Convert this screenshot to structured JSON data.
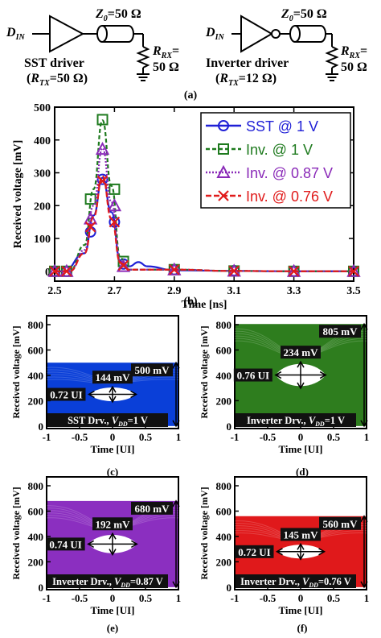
{
  "figure": {
    "captions": [
      "(a)",
      "(b)",
      "(c)",
      "(d)",
      "(e)",
      "(f)"
    ]
  },
  "schematic": {
    "left": {
      "input": "D",
      "input_sub": "IN",
      "line_label": "Z",
      "line_sub": "0",
      "line_value": "=50 Ω",
      "load_label": "R",
      "load_sub": "RX",
      "load_eq": "=",
      "load_value": "50 Ω",
      "driver_name": "SST driver",
      "driver_param_open": "(",
      "driver_param": "R",
      "driver_param_sub": "TX",
      "driver_param_value": "=50 Ω)"
    },
    "right": {
      "input": "D",
      "input_sub": "IN",
      "line_label": "Z",
      "line_sub": "0",
      "line_value": "=50 Ω",
      "load_label": "R",
      "load_sub": "RX",
      "load_eq": "=",
      "load_value": "50 Ω",
      "driver_name": "Inverter driver",
      "driver_param_open": "(",
      "driver_param": "R",
      "driver_param_sub": "TX",
      "driver_param_value": "=12 Ω)"
    }
  },
  "colors": {
    "sst": "#1f1fd6",
    "inv1": "#1e7a1e",
    "inv087": "#8a2ab8",
    "inv076": "#e01b1b",
    "eye_c": "#0a3fd8",
    "eye_d": "#2e7d1e",
    "eye_e": "#8b2fc0",
    "eye_f": "#e0191b"
  },
  "chart_data": [
    {
      "type": "line",
      "panel": "(b)",
      "xlabel": "Time [ns]",
      "ylabel": "Received voltage [mV]",
      "xlim": [
        2.5,
        3.5
      ],
      "ylim": [
        -30,
        500
      ],
      "xticks": [
        "2.5",
        "2.7",
        "2.9",
        "3.1",
        "3.3",
        "3.5"
      ],
      "yticks": [
        "0",
        "100",
        "200",
        "300",
        "400",
        "500"
      ],
      "grid": false,
      "legend_position": "top-right",
      "series": [
        {
          "name": "SST @ 1 V",
          "marker": "circle",
          "dash": "solid",
          "x": [
            2.5,
            2.53,
            2.6,
            2.63,
            2.66,
            2.69,
            2.72,
            2.75,
            2.78,
            2.81,
            2.9,
            3.1,
            3.3,
            3.5
          ],
          "y": [
            0,
            0,
            55,
            170,
            285,
            180,
            30,
            15,
            28,
            15,
            3,
            1,
            0,
            0
          ],
          "marker_x": [
            2.5,
            2.54,
            2.62,
            2.66,
            2.7,
            2.73,
            2.9,
            3.1,
            3.3,
            3.5
          ],
          "marker_y": [
            0,
            0,
            120,
            280,
            150,
            22,
            5,
            2,
            0,
            0
          ]
        },
        {
          "name": "Inv. @ 1 V",
          "marker": "square",
          "dash": "5,3",
          "x": [
            2.5,
            2.55,
            2.6,
            2.63,
            2.66,
            2.69,
            2.72,
            2.75,
            2.8,
            2.9,
            3.1,
            3.3,
            3.5
          ],
          "y": [
            0,
            0,
            80,
            250,
            460,
            260,
            40,
            5,
            5,
            5,
            1,
            0,
            0
          ],
          "marker_x": [
            2.5,
            2.54,
            2.62,
            2.66,
            2.7,
            2.73,
            2.9,
            3.1,
            3.3,
            3.5
          ],
          "marker_y": [
            0,
            0,
            220,
            462,
            250,
            30,
            5,
            1,
            0,
            0
          ]
        },
        {
          "name": "Inv. @ 0.87 V",
          "marker": "triangle",
          "dash": "2,2",
          "x": [
            2.5,
            2.55,
            2.6,
            2.63,
            2.66,
            2.69,
            2.72,
            2.75,
            2.8,
            2.9,
            3.1,
            3.3,
            3.5
          ],
          "y": [
            0,
            0,
            65,
            200,
            375,
            210,
            30,
            5,
            5,
            5,
            1,
            0,
            0
          ],
          "marker_x": [
            2.5,
            2.54,
            2.62,
            2.66,
            2.7,
            2.73,
            2.9,
            3.1,
            3.3,
            3.5
          ],
          "marker_y": [
            0,
            0,
            160,
            372,
            200,
            15,
            5,
            1,
            0,
            0
          ]
        },
        {
          "name": "Inv. @ 0.76 V",
          "marker": "x",
          "dash": "7,3",
          "x": [
            2.5,
            2.55,
            2.6,
            2.63,
            2.66,
            2.69,
            2.72,
            2.75,
            2.8,
            2.9,
            3.1,
            3.3,
            3.5
          ],
          "y": [
            0,
            0,
            55,
            165,
            290,
            160,
            25,
            5,
            5,
            5,
            1,
            0,
            0
          ],
          "marker_x": [
            2.5,
            2.54,
            2.62,
            2.66,
            2.7,
            2.73,
            2.9,
            3.1,
            3.3,
            3.5
          ],
          "marker_y": [
            0,
            0,
            135,
            275,
            150,
            18,
            5,
            1,
            0,
            0
          ]
        }
      ]
    },
    {
      "type": "area",
      "panel": "(c)",
      "color_key": "eye_c",
      "xlabel": "Time [UI]",
      "ylabel": "Received voltage [mV]",
      "xlim": [
        -1,
        1
      ],
      "ylim": [
        -20,
        870
      ],
      "xticks": [
        "-1",
        "-0.5",
        "0",
        "0.5",
        "1"
      ],
      "yticks": [
        "0",
        "200",
        "400",
        "600",
        "800"
      ],
      "swing_label": "500 mV",
      "swing": 500,
      "eye_height_label": "144 mV",
      "eye_height": 144,
      "eye_width_label": "0.72 UI",
      "eye_width": 0.72,
      "annotation_pre": "SST Drv., ",
      "annotation_var": "V",
      "annotation_sub": "DD",
      "annotation_post": "=1 V",
      "low": 0,
      "high": 500
    },
    {
      "type": "area",
      "panel": "(d)",
      "color_key": "eye_d",
      "xlabel": "Time [UI]",
      "ylabel": "Received voltage [mV]",
      "xlim": [
        -1,
        1
      ],
      "ylim": [
        -20,
        870
      ],
      "xticks": [
        "-1",
        "-0.5",
        "0",
        "0.5",
        "1"
      ],
      "yticks": [
        "0",
        "200",
        "400",
        "600",
        "800"
      ],
      "swing_label": "805 mV",
      "swing": 805,
      "eye_height_label": "234 mV",
      "eye_height": 234,
      "eye_width_label": "0.76 UI",
      "eye_width": 0.76,
      "annotation_pre": "Inverter Drv., ",
      "annotation_var": "V",
      "annotation_sub": "DD",
      "annotation_post": "=1 V",
      "low": 0,
      "high": 805
    },
    {
      "type": "area",
      "panel": "(e)",
      "color_key": "eye_e",
      "xlabel": "Time [UI]",
      "ylabel": "Received voltage [mV]",
      "xlim": [
        -1,
        1
      ],
      "ylim": [
        -20,
        870
      ],
      "xticks": [
        "-1",
        "-0.5",
        "0",
        "0.5",
        "1"
      ],
      "yticks": [
        "0",
        "200",
        "400",
        "600",
        "800"
      ],
      "swing_label": "680 mV",
      "swing": 680,
      "eye_height_label": "192 mV",
      "eye_height": 192,
      "eye_width_label": "0.74 UI",
      "eye_width": 0.74,
      "annotation_pre": "Inverter Drv., ",
      "annotation_var": "V",
      "annotation_sub": "DD",
      "annotation_post": "=0.87 V",
      "low": 0,
      "high": 680
    },
    {
      "type": "area",
      "panel": "(f)",
      "color_key": "eye_f",
      "xlabel": "Time [UI]",
      "ylabel": "Received voltage [mV]",
      "xlim": [
        -1,
        1
      ],
      "ylim": [
        -20,
        870
      ],
      "xticks": [
        "-1",
        "-0.5",
        "0",
        "0.5",
        "1"
      ],
      "yticks": [
        "0",
        "200",
        "400",
        "600",
        "800"
      ],
      "swing_label": "560 mV",
      "swing": 560,
      "eye_height_label": "145 mV",
      "eye_height": 145,
      "eye_width_label": "0.72 UI",
      "eye_width": 0.72,
      "annotation_pre": "Inverter Drv., ",
      "annotation_var": "V",
      "annotation_sub": "DD",
      "annotation_post": "=0.76 V",
      "low": 0,
      "high": 560
    }
  ]
}
